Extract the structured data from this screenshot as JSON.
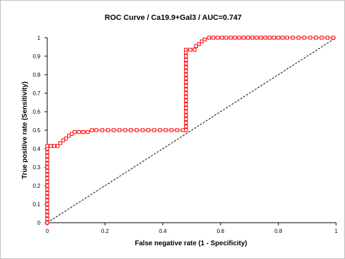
{
  "chart_data": {
    "type": "line",
    "title": "ROC Curve / Ca19.9+Gal3 / AUC=0.747",
    "xlabel": "False negative rate (1 - Specificity)",
    "ylabel": "True positive rate (Sensitivity)",
    "xlim": [
      0,
      1
    ],
    "ylim": [
      0,
      1
    ],
    "x_ticks": [
      "0",
      "0.2",
      "0.4",
      "0.6",
      "0.8",
      "1"
    ],
    "y_ticks": [
      "0",
      "0.1",
      "0.2",
      "0.3",
      "0.4",
      "0.5",
      "0.6",
      "0.7",
      "0.8",
      "0.9",
      "1"
    ],
    "grid": false,
    "legend": "none",
    "series": [
      {
        "kind": "roc",
        "marker": "square",
        "color": "#ff0000",
        "points": [
          [
            0,
            0
          ],
          [
            0,
            0.02
          ],
          [
            0,
            0.04
          ],
          [
            0,
            0.06
          ],
          [
            0,
            0.08
          ],
          [
            0,
            0.1
          ],
          [
            0,
            0.12
          ],
          [
            0,
            0.14
          ],
          [
            0,
            0.16
          ],
          [
            0,
            0.18
          ],
          [
            0,
            0.2
          ],
          [
            0,
            0.22
          ],
          [
            0,
            0.24
          ],
          [
            0,
            0.26
          ],
          [
            0,
            0.28
          ],
          [
            0,
            0.3
          ],
          [
            0,
            0.32
          ],
          [
            0,
            0.34
          ],
          [
            0,
            0.36
          ],
          [
            0,
            0.38
          ],
          [
            0,
            0.4
          ],
          [
            0,
            0.415
          ],
          [
            0.012,
            0.415
          ],
          [
            0.024,
            0.415
          ],
          [
            0.036,
            0.415
          ],
          [
            0.045,
            0.43
          ],
          [
            0.055,
            0.445
          ],
          [
            0.065,
            0.455
          ],
          [
            0.075,
            0.47
          ],
          [
            0.085,
            0.48
          ],
          [
            0.095,
            0.49
          ],
          [
            0.11,
            0.49
          ],
          [
            0.125,
            0.49
          ],
          [
            0.14,
            0.49
          ],
          [
            0.155,
            0.5
          ],
          [
            0.17,
            0.5
          ],
          [
            0.19,
            0.5
          ],
          [
            0.21,
            0.5
          ],
          [
            0.23,
            0.5
          ],
          [
            0.25,
            0.5
          ],
          [
            0.27,
            0.5
          ],
          [
            0.29,
            0.5
          ],
          [
            0.31,
            0.5
          ],
          [
            0.33,
            0.5
          ],
          [
            0.35,
            0.5
          ],
          [
            0.37,
            0.5
          ],
          [
            0.39,
            0.5
          ],
          [
            0.41,
            0.5
          ],
          [
            0.43,
            0.5
          ],
          [
            0.45,
            0.5
          ],
          [
            0.47,
            0.5
          ],
          [
            0.48,
            0.5
          ],
          [
            0.48,
            0.52
          ],
          [
            0.48,
            0.54
          ],
          [
            0.48,
            0.56
          ],
          [
            0.48,
            0.58
          ],
          [
            0.48,
            0.6
          ],
          [
            0.48,
            0.62
          ],
          [
            0.48,
            0.64
          ],
          [
            0.48,
            0.66
          ],
          [
            0.48,
            0.68
          ],
          [
            0.48,
            0.7
          ],
          [
            0.48,
            0.72
          ],
          [
            0.48,
            0.74
          ],
          [
            0.48,
            0.76
          ],
          [
            0.48,
            0.78
          ],
          [
            0.48,
            0.8
          ],
          [
            0.48,
            0.82
          ],
          [
            0.48,
            0.84
          ],
          [
            0.48,
            0.86
          ],
          [
            0.48,
            0.88
          ],
          [
            0.48,
            0.9
          ],
          [
            0.48,
            0.92
          ],
          [
            0.48,
            0.935
          ],
          [
            0.495,
            0.935
          ],
          [
            0.51,
            0.935
          ],
          [
            0.515,
            0.955
          ],
          [
            0.525,
            0.965
          ],
          [
            0.535,
            0.98
          ],
          [
            0.545,
            0.99
          ],
          [
            0.56,
            1
          ],
          [
            0.575,
            1
          ],
          [
            0.59,
            1
          ],
          [
            0.605,
            1
          ],
          [
            0.62,
            1
          ],
          [
            0.635,
            1
          ],
          [
            0.65,
            1
          ],
          [
            0.665,
            1
          ],
          [
            0.68,
            1
          ],
          [
            0.695,
            1
          ],
          [
            0.71,
            1
          ],
          [
            0.725,
            1
          ],
          [
            0.74,
            1
          ],
          [
            0.755,
            1
          ],
          [
            0.77,
            1
          ],
          [
            0.785,
            1
          ],
          [
            0.8,
            1
          ],
          [
            0.815,
            1
          ],
          [
            0.83,
            1
          ],
          [
            0.85,
            1
          ],
          [
            0.87,
            1
          ],
          [
            0.89,
            1
          ],
          [
            0.91,
            1
          ],
          [
            0.93,
            1
          ],
          [
            0.95,
            1
          ],
          [
            0.97,
            1
          ],
          [
            0.99,
            1
          ]
        ]
      },
      {
        "kind": "reference",
        "style": "dashed",
        "color": "#000000",
        "points": [
          [
            0,
            0
          ],
          [
            1,
            1
          ]
        ]
      }
    ]
  }
}
